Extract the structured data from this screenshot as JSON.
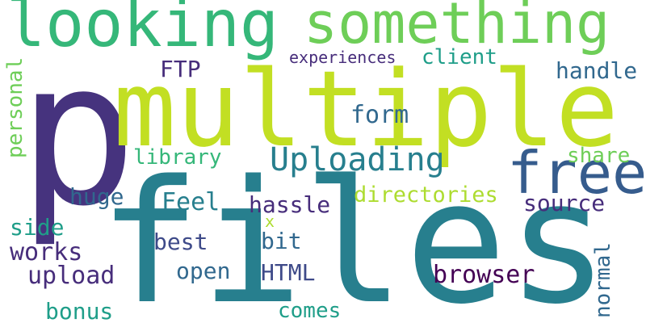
{
  "colors": {
    "background": "#ffffff",
    "indigo": "#46337e",
    "violet": "#472d7b",
    "deep_purple": "#440154",
    "blue": "#365c8d",
    "slate_blue": "#3e4a89",
    "steel_blue": "#31688e",
    "teal": "#277f8e",
    "teal_green": "#1f9e89",
    "green": "#35b779",
    "light_green": "#6ece58",
    "lime": "#addc30",
    "yellow_green": "#c2df23"
  },
  "words": [
    {
      "text": "p",
      "color": "indigo",
      "icon": ""
    },
    {
      "text": "files",
      "color": "teal"
    },
    {
      "text": "multiple",
      "color": "yellow_green"
    },
    {
      "text": "looking",
      "color": "green"
    },
    {
      "text": "something",
      "color": "light_green"
    },
    {
      "text": "free",
      "color": "blue"
    },
    {
      "text": "Uploading",
      "color": "teal"
    },
    {
      "text": "form",
      "color": "steel_blue"
    },
    {
      "text": "experiences",
      "color": "violet"
    },
    {
      "text": "client",
      "color": "teal_green"
    },
    {
      "text": "handle",
      "color": "steel_blue"
    },
    {
      "text": "FTP",
      "color": "violet"
    },
    {
      "text": "personal",
      "color": "light_green"
    },
    {
      "text": "library",
      "color": "green"
    },
    {
      "text": "share",
      "color": "light_green"
    },
    {
      "text": "directories",
      "color": "yellow_green"
    },
    {
      "text": "huge",
      "color": "steel_blue"
    },
    {
      "text": "Feel",
      "color": "teal"
    },
    {
      "text": "hassle",
      "color": "violet"
    },
    {
      "text": "x",
      "color": "lime"
    },
    {
      "text": "source",
      "color": "violet"
    },
    {
      "text": "side",
      "color": "teal_green"
    },
    {
      "text": "works",
      "color": "violet"
    },
    {
      "text": "best",
      "color": "slate_blue"
    },
    {
      "text": "bit",
      "color": "steel_blue"
    },
    {
      "text": "normal",
      "color": "steel_blue"
    },
    {
      "text": "upload",
      "color": "violet"
    },
    {
      "text": "open",
      "color": "steel_blue"
    },
    {
      "text": "HTML",
      "color": "slate_blue"
    },
    {
      "text": "browser",
      "color": "deep_purple"
    },
    {
      "text": "bonus",
      "color": "teal_green"
    },
    {
      "text": "comes",
      "color": "teal_green"
    }
  ]
}
